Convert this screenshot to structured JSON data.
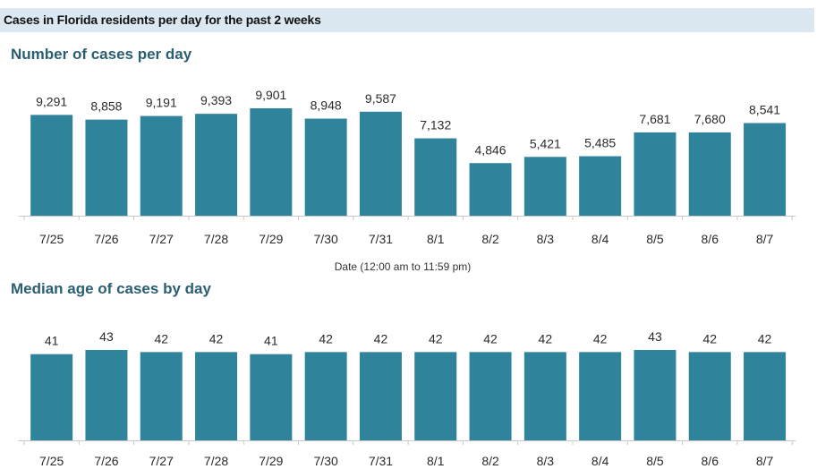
{
  "header": {
    "title": "Cases in Florida residents per day for the past 2 weeks"
  },
  "colors": {
    "bar": "#2f839a",
    "header_band": "#dbe8f1",
    "section_title": "#2a5f72"
  },
  "chart_data": [
    {
      "type": "bar",
      "title": "Number of cases per day",
      "xlabel": "Date (12:00 am to 11:59 pm)",
      "ylabel": "",
      "categories": [
        "7/25",
        "7/26",
        "7/27",
        "7/28",
        "7/29",
        "7/30",
        "7/31",
        "8/1",
        "8/2",
        "8/3",
        "8/4",
        "8/5",
        "8/6",
        "8/7"
      ],
      "values": [
        9291,
        8858,
        9191,
        9393,
        9901,
        8948,
        9587,
        7132,
        4846,
        5421,
        5485,
        7681,
        7680,
        8541
      ],
      "value_labels": [
        "9,291",
        "8,858",
        "9,191",
        "9,393",
        "9,901",
        "8,948",
        "9,587",
        "7,132",
        "4,846",
        "5,421",
        "5,485",
        "7,681",
        "7,680",
        "8,541"
      ],
      "ylim": [
        0,
        9901
      ],
      "grid": false
    },
    {
      "type": "bar",
      "title": "Median age of cases by day",
      "xlabel": "",
      "ylabel": "",
      "categories": [
        "7/25",
        "7/26",
        "7/27",
        "7/28",
        "7/29",
        "7/30",
        "7/31",
        "8/1",
        "8/2",
        "8/3",
        "8/4",
        "8/5",
        "8/6",
        "8/7"
      ],
      "values": [
        41,
        43,
        42,
        42,
        41,
        42,
        42,
        42,
        42,
        42,
        42,
        43,
        42,
        42
      ],
      "value_labels": [
        "41",
        "43",
        "42",
        "42",
        "41",
        "42",
        "42",
        "42",
        "42",
        "42",
        "42",
        "43",
        "42",
        "42"
      ],
      "ylim": [
        0,
        43
      ],
      "grid": false
    }
  ]
}
